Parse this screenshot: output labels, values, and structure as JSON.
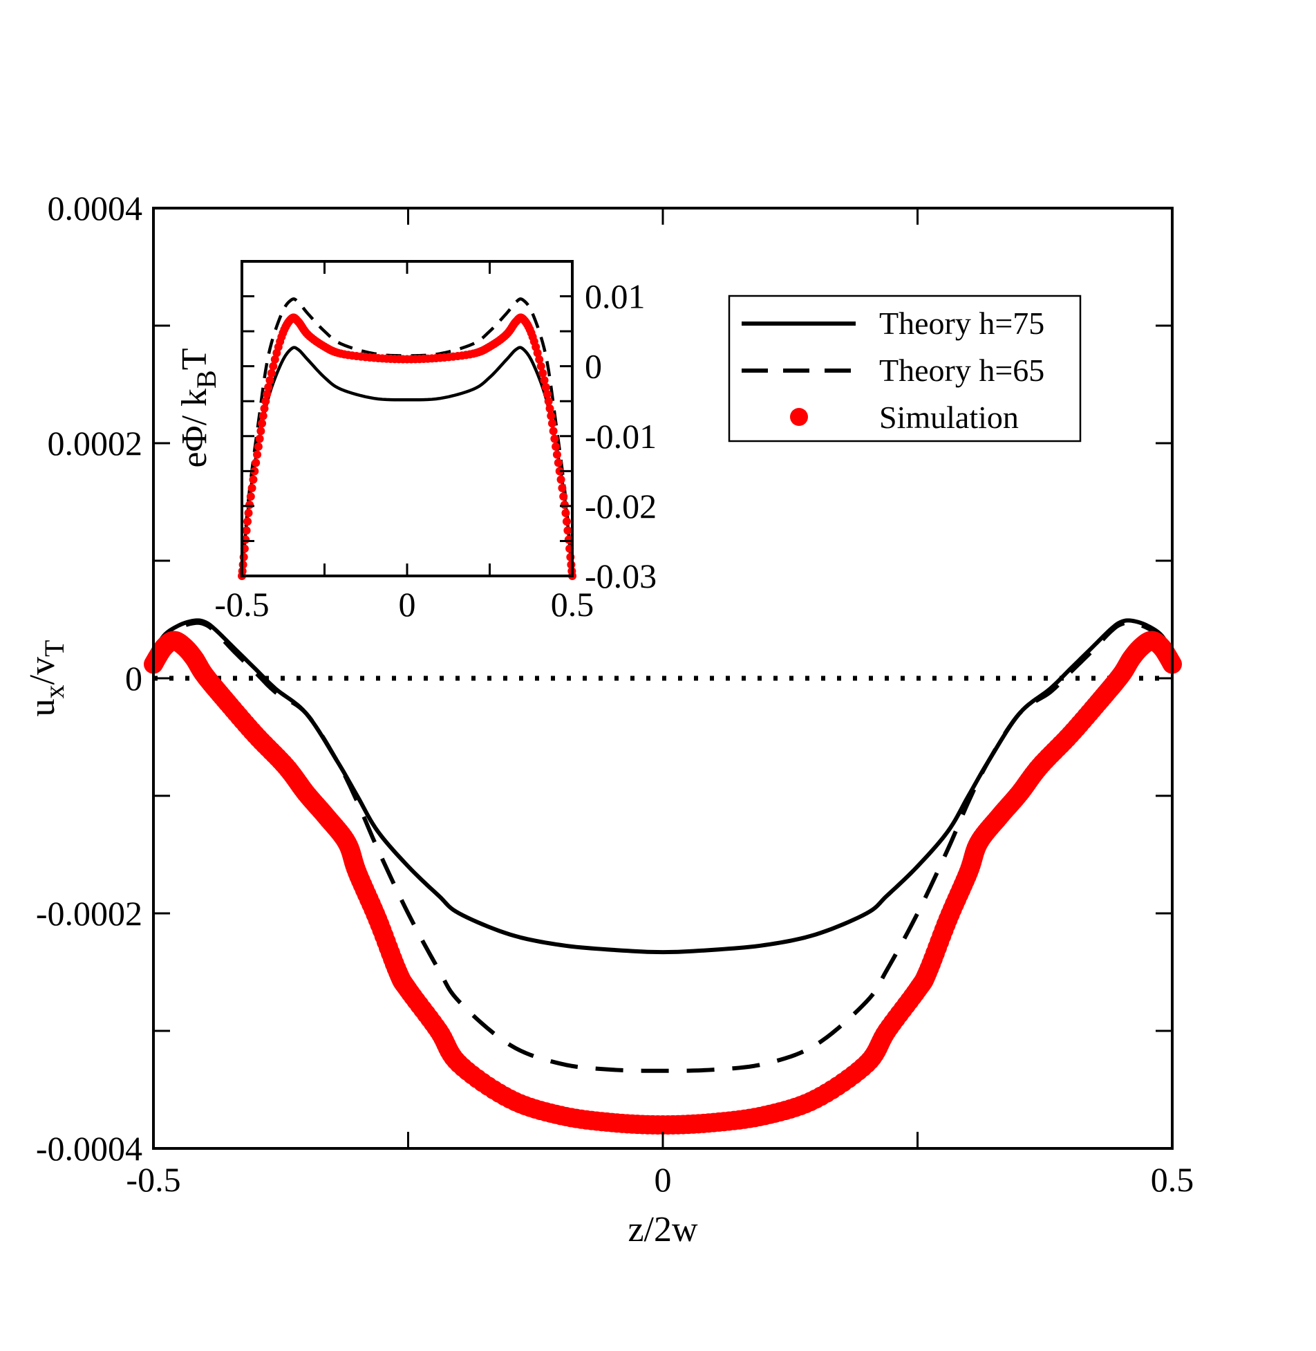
{
  "chart_data": [
    {
      "type": "line",
      "id": "main",
      "xlabel": "z/2w",
      "ylabel": {
        "main": "u",
        "sub1": "x",
        "mid": "/v",
        "sub2": "T"
      },
      "xlim": [
        -0.5,
        0.5
      ],
      "ylim": [
        -0.0004,
        0.0004
      ],
      "xticks": [
        -0.5,
        -0.25,
        0,
        0.25,
        0.5
      ],
      "xtick_labels": [
        "-0.5",
        "",
        "0",
        "",
        "0.5"
      ],
      "yticks": [
        -0.0004,
        -0.0003,
        -0.0002,
        -0.0001,
        0,
        0.0001,
        0.0002,
        0.0003,
        0.0004
      ],
      "ytick_labels": [
        "-0.0004",
        "",
        "-0.0002",
        "",
        "0",
        "",
        "0.0002",
        "",
        "0.0004"
      ],
      "zero_line": {
        "y": 0,
        "style": "dotted"
      },
      "legend": {
        "placement": "top-right",
        "entries": [
          {
            "label": "Theory h=75",
            "style": "solid",
            "color": "#000000"
          },
          {
            "label": "Theory h=65",
            "style": "dashed",
            "color": "#000000"
          },
          {
            "label": "Simulation",
            "style": "marker",
            "color": "#ff0000"
          }
        ]
      },
      "series": [
        {
          "name": "Theory h=75",
          "style": "solid",
          "color": "#000000",
          "x": [
            -0.5,
            -0.49,
            -0.475,
            -0.46,
            -0.45,
            -0.44,
            -0.42,
            -0.4,
            -0.38,
            -0.35,
            -0.32,
            -0.3,
            -0.28,
            -0.25,
            -0.22,
            -0.2,
            -0.15,
            -0.1,
            -0.05,
            0,
            0.05,
            0.1,
            0.15,
            0.2,
            0.22,
            0.25,
            0.28,
            0.3,
            0.32,
            0.35,
            0.38,
            0.4,
            0.42,
            0.44,
            0.45,
            0.46,
            0.475,
            0.49,
            0.5
          ],
          "y": [
            2e-05,
            3.6e-05,
            4.5e-05,
            4.9e-05,
            4.8e-05,
            4.2e-05,
            2.5e-05,
            8e-06,
            -9e-06,
            -3e-05,
            -7e-05,
            -0.0001,
            -0.00013,
            -0.00016,
            -0.000185,
            -0.0002,
            -0.000218,
            -0.000227,
            -0.000231,
            -0.000233,
            -0.000231,
            -0.000227,
            -0.000218,
            -0.0002,
            -0.000185,
            -0.00016,
            -0.00013,
            -0.0001,
            -7e-05,
            -3e-05,
            -9e-06,
            8e-06,
            2.5e-05,
            4.2e-05,
            4.8e-05,
            4.9e-05,
            4.5e-05,
            3.6e-05,
            2e-05
          ]
        },
        {
          "name": "Theory h=65",
          "style": "dashed",
          "color": "#000000",
          "x": [
            -0.5,
            -0.49,
            -0.475,
            -0.46,
            -0.45,
            -0.44,
            -0.42,
            -0.4,
            -0.38,
            -0.35,
            -0.32,
            -0.3,
            -0.28,
            -0.25,
            -0.22,
            -0.2,
            -0.15,
            -0.1,
            -0.05,
            0,
            0.05,
            0.1,
            0.15,
            0.2,
            0.22,
            0.25,
            0.28,
            0.3,
            0.32,
            0.35,
            0.38,
            0.4,
            0.42,
            0.44,
            0.45,
            0.46,
            0.475,
            0.49,
            0.5
          ],
          "y": [
            2e-05,
            3.4e-05,
            4.3e-05,
            4.7e-05,
            4.6e-05,
            4e-05,
            2.2e-05,
            5e-06,
            -1.2e-05,
            -3e-05,
            -7e-05,
            -0.000105,
            -0.000145,
            -0.0002,
            -0.000248,
            -0.000275,
            -0.000312,
            -0.000328,
            -0.000333,
            -0.000334,
            -0.000333,
            -0.000328,
            -0.000312,
            -0.000275,
            -0.000248,
            -0.0002,
            -0.000145,
            -0.000105,
            -7e-05,
            -3e-05,
            -1.2e-05,
            5e-06,
            2.2e-05,
            4e-05,
            4.6e-05,
            4.7e-05,
            4.3e-05,
            3.4e-05,
            2e-05
          ]
        },
        {
          "name": "Simulation",
          "style": "marker",
          "color": "#ff0000",
          "x": [
            -0.5,
            -0.49,
            -0.48,
            -0.47,
            -0.46,
            -0.45,
            -0.43,
            -0.4,
            -0.37,
            -0.35,
            -0.33,
            -0.31,
            -0.3,
            -0.28,
            -0.26,
            -0.25,
            -0.22,
            -0.2,
            -0.15,
            -0.1,
            -0.05,
            0,
            0.05,
            0.1,
            0.15,
            0.2,
            0.22,
            0.25,
            0.26,
            0.28,
            0.3,
            0.31,
            0.33,
            0.35,
            0.37,
            0.4,
            0.43,
            0.45,
            0.46,
            0.47,
            0.48,
            0.49,
            0.5
          ],
          "y": [
            1.2e-05,
            2.6e-05,
            3.2e-05,
            2.7e-05,
            1.7e-05,
            3e-06,
            -1.8e-05,
            -4.8e-05,
            -7.5e-05,
            -9.8e-05,
            -0.000118,
            -0.00014,
            -0.000165,
            -0.000205,
            -0.00025,
            -0.000265,
            -0.0003,
            -0.000328,
            -0.000358,
            -0.000372,
            -0.000378,
            -0.00038,
            -0.000378,
            -0.000372,
            -0.000358,
            -0.000328,
            -0.0003,
            -0.000265,
            -0.00025,
            -0.000205,
            -0.000165,
            -0.00014,
            -0.000118,
            -9.8e-05,
            -7.5e-05,
            -4.8e-05,
            -1.8e-05,
            3e-06,
            1.7e-05,
            2.7e-05,
            3.2e-05,
            2.6e-05,
            1.2e-05
          ]
        }
      ]
    },
    {
      "type": "line",
      "id": "inset",
      "ylabel": {
        "e": "e",
        "phi": "Φ",
        "slash": "/ k",
        "sub": "B",
        "tail": "T"
      },
      "xlim": [
        -0.5,
        0.5
      ],
      "ylim": [
        -0.03,
        0.015
      ],
      "xticks": [
        -0.5,
        -0.25,
        0,
        0.25,
        0.5
      ],
      "xtick_labels": [
        "-0.5",
        "",
        "0",
        "",
        "0.5"
      ],
      "yticks": [
        -0.03,
        -0.025,
        -0.02,
        -0.015,
        -0.01,
        -0.005,
        0,
        0.005,
        0.01
      ],
      "ytick_labels": [
        "-0.03",
        "",
        "-0.02",
        "",
        "-0.01",
        "",
        "0",
        "",
        "0.01"
      ],
      "series": [
        {
          "name": "Theory h=75",
          "style": "solid",
          "color": "#000000",
          "x": [
            -0.5,
            -0.48,
            -0.45,
            -0.42,
            -0.38,
            -0.35,
            -0.33,
            -0.3,
            -0.25,
            -0.2,
            -0.1,
            0,
            0.1,
            0.2,
            0.25,
            0.3,
            0.33,
            0.35,
            0.38,
            0.42,
            0.45,
            0.48,
            0.5
          ],
          "y": [
            -0.03,
            -0.02,
            -0.011,
            -0.0045,
            0.0005,
            0.0025,
            0.0024,
            0.0009,
            -0.0016,
            -0.0033,
            -0.0046,
            -0.0048,
            -0.0046,
            -0.0033,
            -0.0016,
            0.0009,
            0.0024,
            0.0025,
            0.0005,
            -0.0045,
            -0.011,
            -0.02,
            -0.03
          ]
        },
        {
          "name": "Theory h=65",
          "style": "dashed",
          "color": "#000000",
          "x": [
            -0.5,
            -0.48,
            -0.45,
            -0.42,
            -0.38,
            -0.35,
            -0.33,
            -0.3,
            -0.25,
            -0.2,
            -0.1,
            0,
            0.1,
            0.2,
            0.25,
            0.3,
            0.33,
            0.35,
            0.38,
            0.42,
            0.45,
            0.48,
            0.5
          ],
          "y": [
            -0.03,
            -0.019,
            -0.008,
            0.0015,
            0.0075,
            0.0095,
            0.0092,
            0.0075,
            0.005,
            0.0032,
            0.0018,
            0.0015,
            0.0018,
            0.0032,
            0.005,
            0.0075,
            0.0092,
            0.0095,
            0.0075,
            0.0015,
            -0.008,
            -0.019,
            -0.03
          ]
        },
        {
          "name": "Simulation",
          "style": "marker",
          "color": "#ff0000",
          "x": [
            -0.5,
            -0.48,
            -0.45,
            -0.42,
            -0.38,
            -0.35,
            -0.33,
            -0.3,
            -0.25,
            -0.2,
            -0.1,
            0,
            0.1,
            0.2,
            0.25,
            0.3,
            0.33,
            0.35,
            0.38,
            0.42,
            0.45,
            0.48,
            0.5
          ],
          "y": [
            -0.03,
            -0.021,
            -0.0115,
            -0.003,
            0.0042,
            0.0068,
            0.0064,
            0.0045,
            0.0028,
            0.0018,
            0.0012,
            0.001,
            0.0012,
            0.0018,
            0.0028,
            0.0045,
            0.0064,
            0.0068,
            0.0042,
            -0.003,
            -0.0115,
            -0.021,
            -0.03
          ]
        }
      ]
    }
  ]
}
